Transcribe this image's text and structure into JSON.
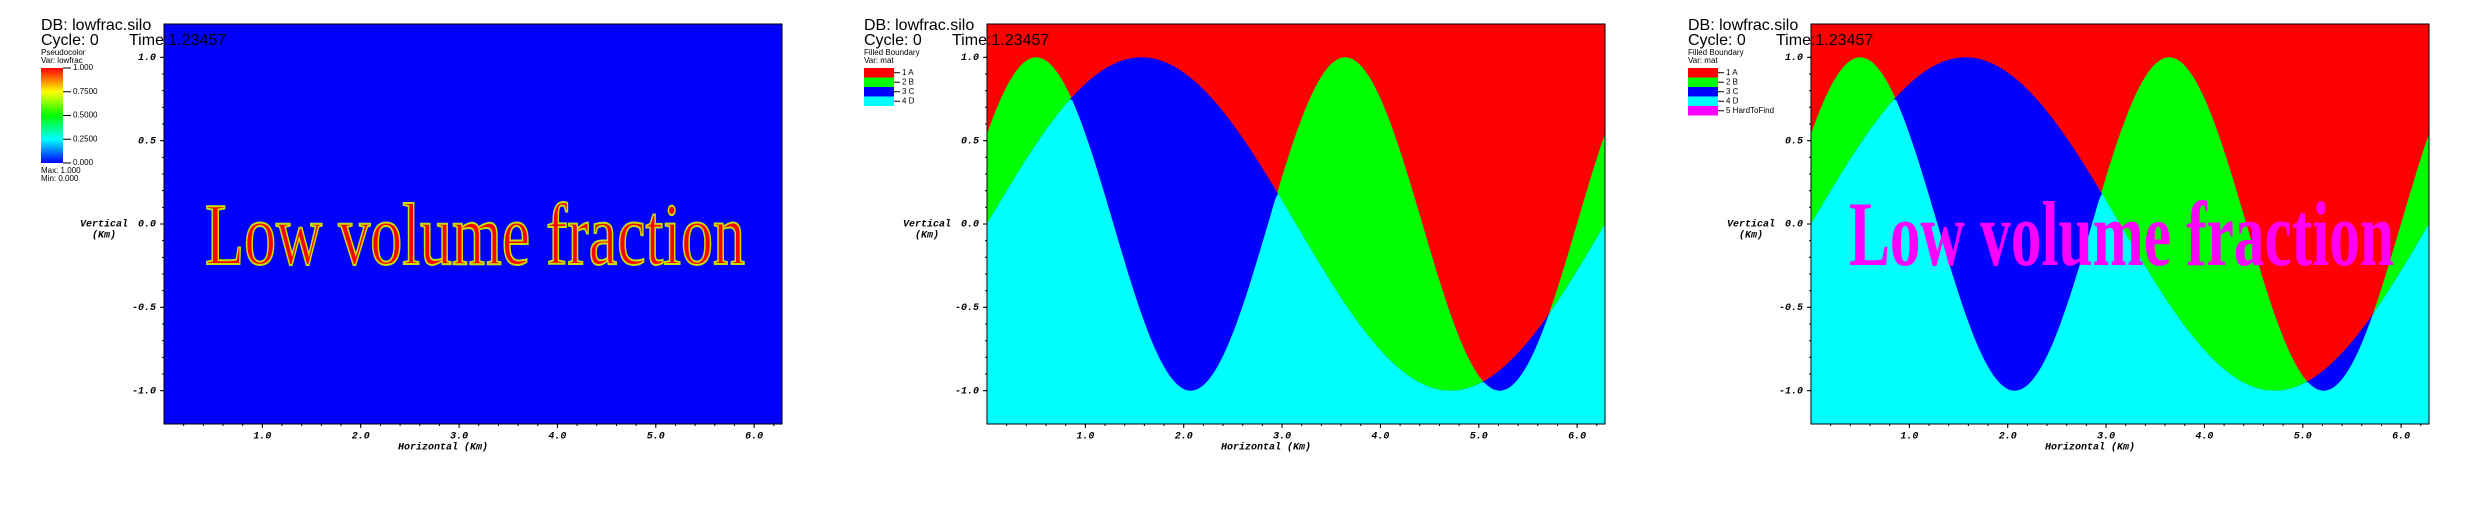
{
  "panels": [
    {
      "header": {
        "db": "DB: lowfrac.silo",
        "cycle": "Cycle: 0",
        "time": "Time:1.23457"
      },
      "legend": {
        "title": "Pseudocolor",
        "var": "Var: lowfrac",
        "labels": [
          "1.000",
          "0.7500",
          "0.5000",
          "0.2500",
          "0.000"
        ],
        "max": "Max:  1.000",
        "min": "Min:  0.000"
      },
      "annotation": "Low volume fraction",
      "axes": {
        "y_title": [
          "Vertical",
          "(Km)"
        ],
        "x_title": "Horizontal (Km)",
        "yticks": [
          "1.0",
          "0.5",
          "0.0",
          "-0.5",
          "-1.0"
        ],
        "xticks": [
          "1.0",
          "2.0",
          "3.0",
          "4.0",
          "5.0",
          "6.0"
        ]
      }
    },
    {
      "header": {
        "db": "DB: lowfrac.silo",
        "cycle": "Cycle: 0",
        "time": "Time:1.23457"
      },
      "legend": {
        "title": "Filled Boundary",
        "var": "Var: mat",
        "entries": [
          {
            "label": "1 A",
            "color": "#ff0000"
          },
          {
            "label": "2 B",
            "color": "#00ff00"
          },
          {
            "label": "3 C",
            "color": "#0000ff"
          },
          {
            "label": "4 D",
            "color": "#00ffff"
          }
        ]
      },
      "axes": {
        "y_title": [
          "Vertical",
          "(Km)"
        ],
        "x_title": "Horizontal (Km)",
        "yticks": [
          "1.0",
          "0.5",
          "0.0",
          "-0.5",
          "-1.0"
        ],
        "xticks": [
          "1.0",
          "2.0",
          "3.0",
          "4.0",
          "5.0",
          "6.0"
        ]
      }
    },
    {
      "header": {
        "db": "DB: lowfrac.silo",
        "cycle": "Cycle: 0",
        "time": "Time:1.23457"
      },
      "legend": {
        "title": "Filled Boundary",
        "var": "Var: mat",
        "entries": [
          {
            "label": "1 A",
            "color": "#ff0000"
          },
          {
            "label": "2 B",
            "color": "#00ff00"
          },
          {
            "label": "3 C",
            "color": "#0000ff"
          },
          {
            "label": "4 D",
            "color": "#00ffff"
          },
          {
            "label": "5 HardToFind",
            "color": "#ff00ff"
          }
        ]
      },
      "annotation": "Low volume fraction",
      "axes": {
        "y_title": [
          "Vertical",
          "(Km)"
        ],
        "x_title": "Horizontal (Km)",
        "yticks": [
          "1.0",
          "0.5",
          "0.0",
          "-0.5",
          "-1.0"
        ],
        "xticks": [
          "1.0",
          "2.0",
          "3.0",
          "4.0",
          "5.0",
          "6.0"
        ]
      }
    }
  ]
}
